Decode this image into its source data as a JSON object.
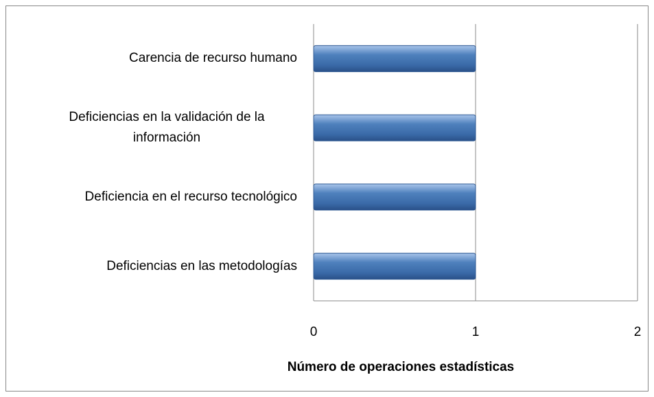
{
  "chart_data": {
    "type": "bar",
    "orientation": "horizontal",
    "categories": [
      "Carencia de recurso humano",
      "Deficiencias en la validación de la información",
      "Deficiencia en el recurso tecnológico",
      "Deficiencias en las metodologías"
    ],
    "values": [
      1,
      1,
      1,
      1
    ],
    "color": "#4f81bd",
    "xlim": [
      0,
      2
    ],
    "xticks": [
      0,
      1,
      2
    ],
    "grid": true,
    "x_label": "Número de operaciones  estadísticas"
  }
}
